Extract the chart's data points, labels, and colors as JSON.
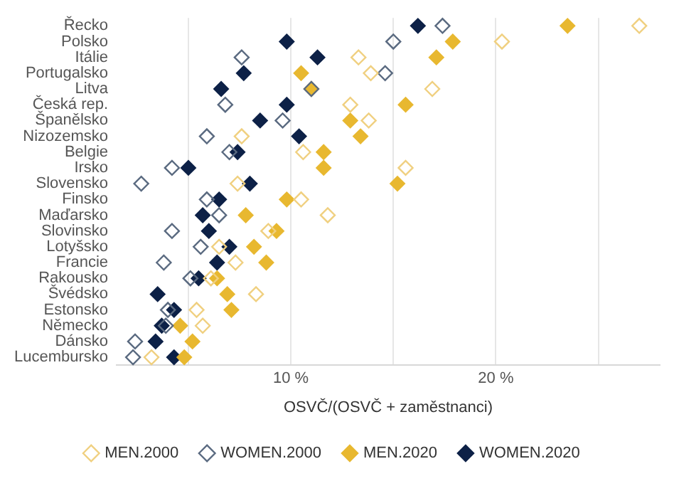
{
  "chart_data": {
    "type": "scatter",
    "xlabel": "OSVČ/(OSVČ + zaměstnanci)",
    "categories": [
      "Řecko",
      "Polsko",
      "Itálie",
      "Portugalsko",
      "Litva",
      "Česká rep.",
      "Španělsko",
      "Nizozemsko",
      "Belgie",
      "Irsko",
      "Slovensko",
      "Finsko",
      "Maďarsko",
      "Slovinsko",
      "Lotyšsko",
      "Francie",
      "Rakousko",
      "Švédsko",
      "Estonsko",
      "Německo",
      "Dánsko",
      "Lucembursko"
    ],
    "series": [
      {
        "name": "MEN.2000",
        "color": "#f0d080",
        "marker": "diamond-open",
        "values": [
          27.0,
          20.3,
          13.3,
          13.9,
          16.9,
          12.9,
          13.8,
          7.6,
          10.6,
          15.6,
          7.4,
          10.5,
          11.8,
          8.9,
          6.5,
          7.3,
          6.1,
          8.3,
          5.4,
          5.7,
          null,
          3.2
        ]
      },
      {
        "name": "WOMEN.2000",
        "color": "#5a6a80",
        "marker": "diamond-open",
        "values": [
          17.4,
          15.0,
          7.6,
          14.6,
          11.0,
          6.8,
          9.6,
          5.9,
          7.0,
          4.2,
          2.7,
          5.9,
          6.5,
          4.2,
          5.6,
          3.8,
          5.1,
          null,
          4.0,
          3.9,
          2.4,
          2.3
        ]
      },
      {
        "name": "MEN.2020",
        "color": "#e8b830",
        "marker": "diamond",
        "values": [
          23.5,
          17.9,
          17.1,
          10.5,
          11.0,
          15.6,
          12.9,
          13.4,
          11.6,
          11.6,
          15.2,
          9.8,
          7.8,
          9.3,
          8.2,
          8.8,
          6.4,
          6.9,
          7.1,
          4.6,
          5.2,
          4.8
        ]
      },
      {
        "name": "WOMEN.2020",
        "color": "#0d2147",
        "marker": "diamond",
        "values": [
          16.2,
          9.8,
          11.3,
          7.7,
          6.6,
          9.8,
          8.5,
          10.4,
          7.4,
          5.0,
          8.0,
          6.5,
          5.7,
          6.0,
          7.0,
          6.4,
          5.5,
          3.5,
          4.3,
          3.7,
          3.4,
          4.3
        ]
      }
    ],
    "xlim": [
      1.5,
      28
    ],
    "xticks": [
      {
        "value": 5,
        "label": null
      },
      {
        "value": 10,
        "label": "10 %"
      },
      {
        "value": 15,
        "label": null
      },
      {
        "value": 20,
        "label": "20 %"
      },
      {
        "value": 25,
        "label": null
      }
    ],
    "grid": "x",
    "legend": "bottom",
    "orientation": "horizontal"
  }
}
